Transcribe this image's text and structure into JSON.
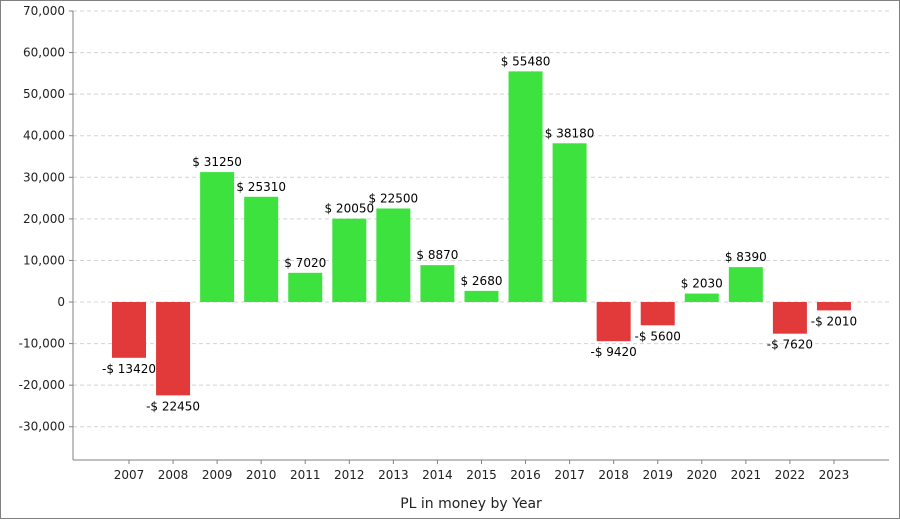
{
  "chart_data": {
    "type": "bar",
    "title": "",
    "xlabel": "PL in money by Year",
    "ylabel": "",
    "categories": [
      "2007",
      "2008",
      "2009",
      "2010",
      "2011",
      "2012",
      "2013",
      "2014",
      "2015",
      "2016",
      "2017",
      "2018",
      "2019",
      "2020",
      "2021",
      "2022",
      "2023"
    ],
    "values": [
      -13420,
      -22450,
      31250,
      25310,
      7020,
      20050,
      22500,
      8870,
      2680,
      55480,
      38180,
      -9420,
      -5600,
      2030,
      8390,
      -7620,
      -2010
    ],
    "data_labels": [
      "-$ 13420",
      "-$ 22450",
      "$ 31250",
      "$ 25310",
      "$ 7020",
      "$ 20050",
      "$ 22500",
      "$ 8870",
      "$ 2680",
      "$ 55480",
      "$ 38180",
      "-$ 9420",
      "-$ 5600",
      "$ 2030",
      "$ 8390",
      "-$ 7620",
      "-$ 2010"
    ],
    "ylim": [
      -38000,
      70000
    ],
    "yticks": [
      70000,
      60000,
      50000,
      40000,
      30000,
      20000,
      10000,
      0,
      -10000,
      -20000,
      -30000
    ],
    "ytick_labels": [
      "70,000",
      "60,000",
      "50,000",
      "40,000",
      "30,000",
      "20,000",
      "10,000",
      "0",
      "-10,000",
      "-20,000",
      "-30,000"
    ],
    "grid": true,
    "legend": "none",
    "colors": {
      "positive": "#3ee23e",
      "negative": "#e23a3a",
      "grid": "#d4d4d4",
      "axis": "#808080"
    }
  }
}
